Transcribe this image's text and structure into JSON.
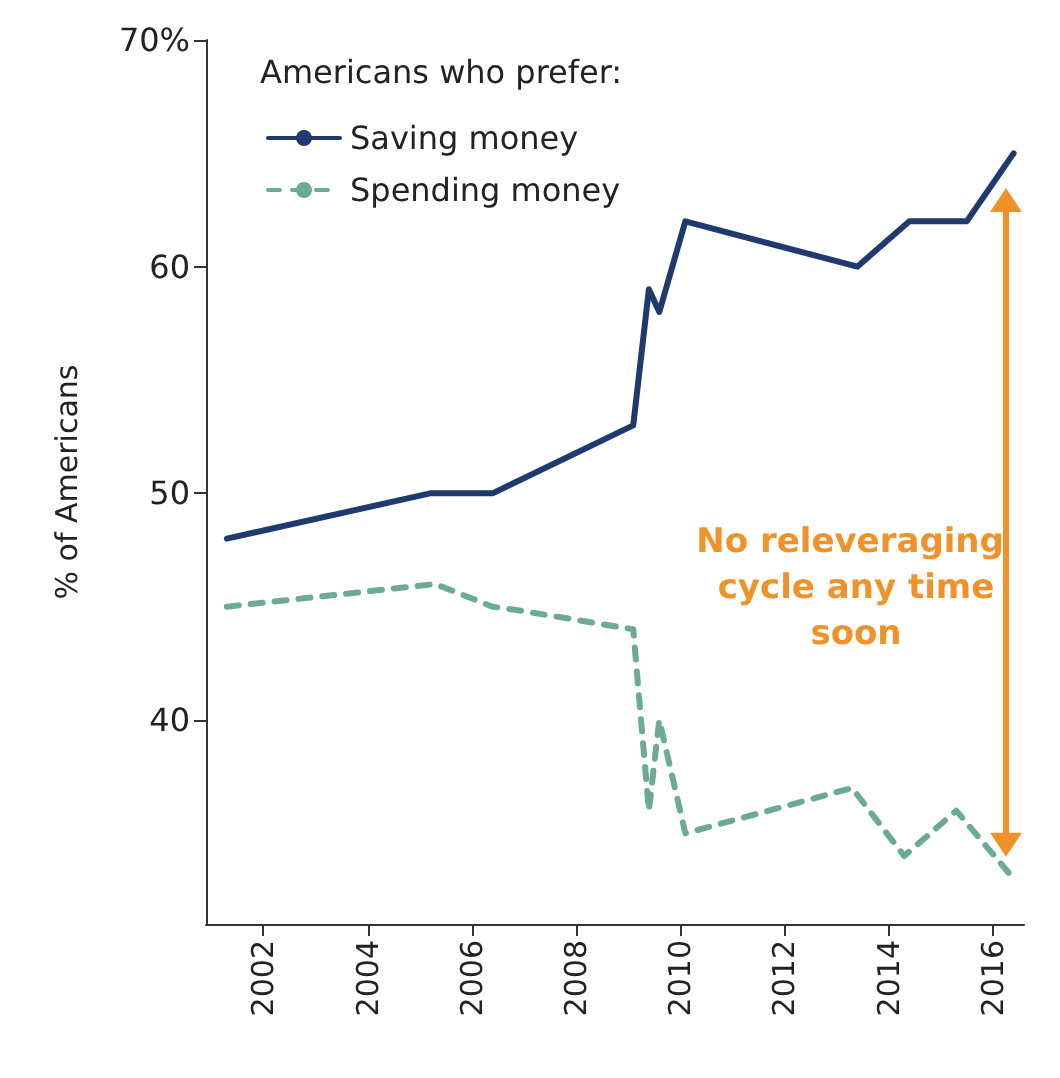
{
  "chart_data": {
    "type": "line",
    "ylabel": "% of Americans",
    "legend_title": "Americans who prefer:",
    "legend": "top left",
    "grid": false,
    "marker": "none",
    "xlim": [
      2000.9,
      2016.6
    ],
    "xticks": [
      2002,
      2004,
      2006,
      2008,
      2010,
      2012,
      2014,
      2016
    ],
    "ylim": [
      31,
      70
    ],
    "yticks": [
      40,
      50,
      60,
      {
        "value": 70,
        "label": "70%"
      }
    ],
    "series": [
      {
        "name": "Saving money",
        "color": "#1f3a6e",
        "line_style": "solid",
        "x": [
          2001.3,
          2005.2,
          2006.4,
          2009.1,
          2009.4,
          2009.6,
          2010.1,
          2013.4,
          2014.4,
          2015.5,
          2016.4
        ],
        "values": [
          48,
          50,
          50,
          53,
          59,
          58,
          62,
          60,
          62,
          62,
          65
        ]
      },
      {
        "name": "Spending money",
        "color": "#6aaa96",
        "line_style": "dashed",
        "x": [
          2001.3,
          2005.3,
          2006.4,
          2007,
          2009.1,
          2009.4,
          2009.6,
          2010.1,
          2013.3,
          2014.3,
          2015.3,
          2016.4
        ],
        "values": [
          45,
          46,
          45,
          44.8,
          44,
          36,
          40,
          35,
          37,
          34,
          36,
          33
        ]
      }
    ],
    "annotations": [
      "No releveraging cycle any time soon"
    ]
  }
}
